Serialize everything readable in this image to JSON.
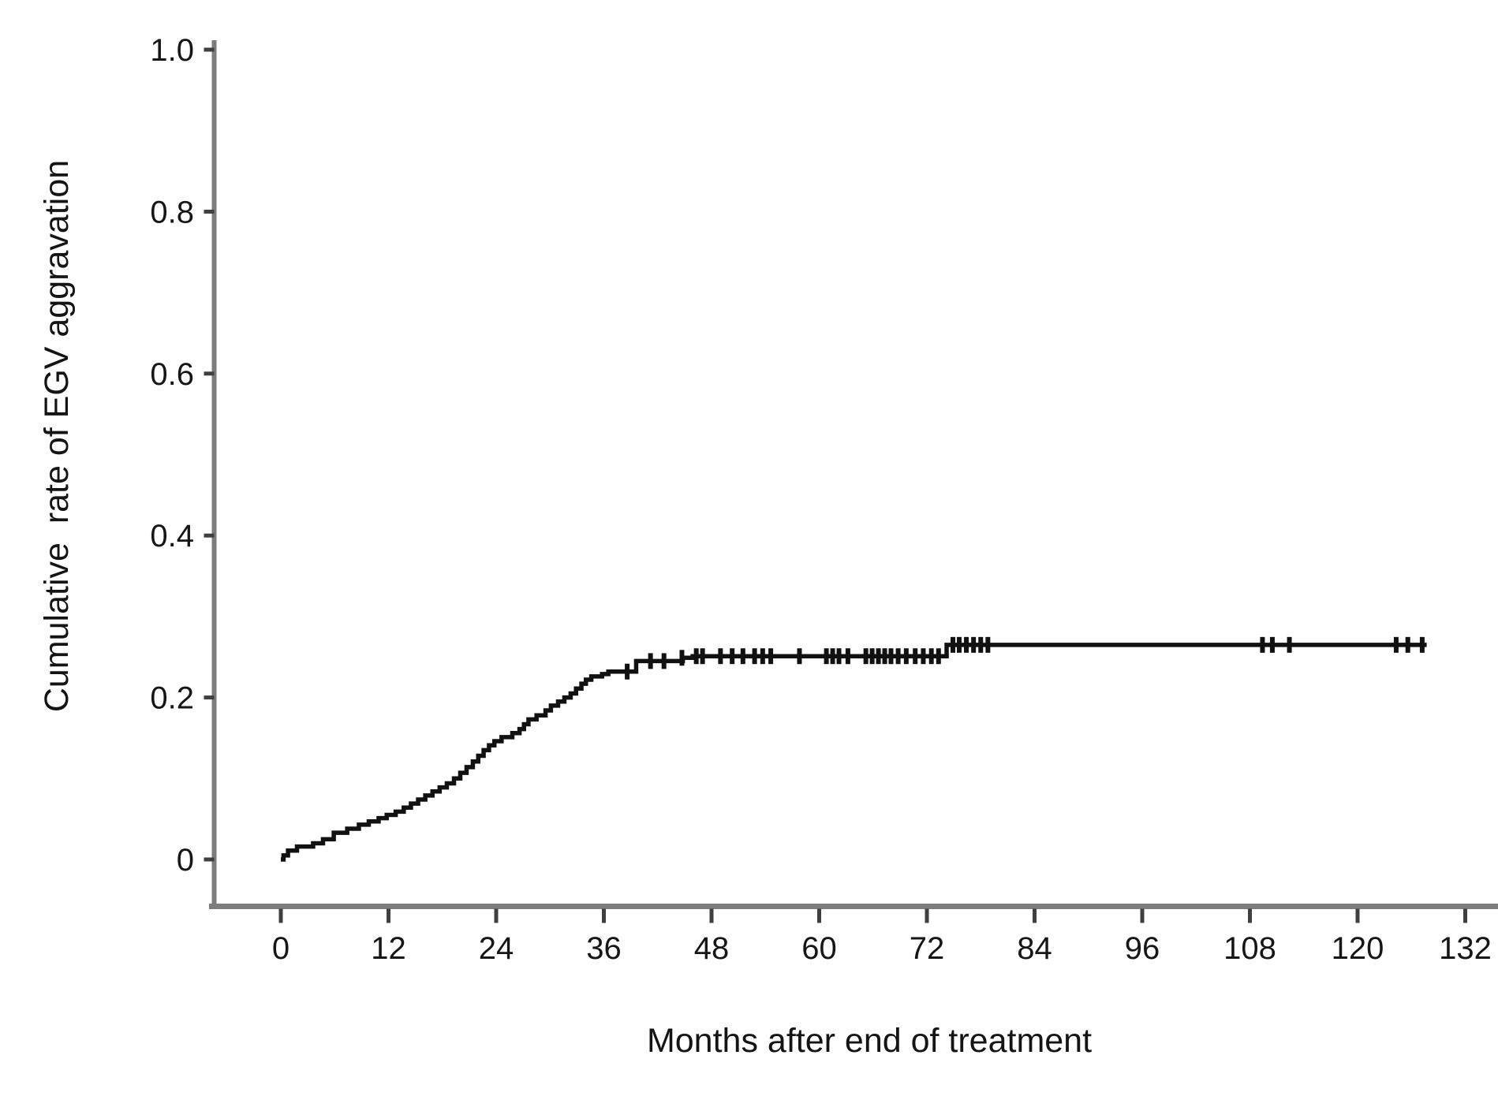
{
  "page": {
    "background": "#ffffff"
  },
  "chart_data": {
    "type": "line",
    "subtype": "kaplan-meier-cumulative-incidence-step-curve",
    "title": "",
    "xlabel": "Months after end of treatment",
    "ylabel": "Cumulative  rate of EGV aggravation",
    "x_ticks": [
      0,
      12,
      24,
      36,
      48,
      60,
      72,
      84,
      96,
      108,
      120,
      132
    ],
    "y_ticks": [
      0,
      0.2,
      0.4,
      0.6,
      0.8,
      1.0
    ],
    "y_tick_labels": [
      "0",
      "0.2",
      "0.4",
      "0.6",
      "0.8",
      "1.0"
    ],
    "xlim": [
      -8,
      138
    ],
    "ylim": [
      -0.06,
      1.01
    ],
    "grid": false,
    "legend": "none",
    "colors": {
      "curve": "#111111",
      "axis": "#7d7d7d",
      "tick": "#3f3f3f",
      "text": "#161616"
    },
    "series": [
      {
        "name": "Cumulative rate of EGV aggravation",
        "end_month": 127.7,
        "final_value": 0.265,
        "step_points": [
          [
            0,
            0
          ],
          [
            0.3,
            0.005
          ],
          [
            0.8,
            0.011
          ],
          [
            1.8,
            0.016
          ],
          [
            3.6,
            0.02
          ],
          [
            4.7,
            0.025
          ],
          [
            5.9,
            0.033
          ],
          [
            7.4,
            0.038
          ],
          [
            8.7,
            0.043
          ],
          [
            9.8,
            0.047
          ],
          [
            10.9,
            0.051
          ],
          [
            11.8,
            0.055
          ],
          [
            12.8,
            0.059
          ],
          [
            13.7,
            0.064
          ],
          [
            14.5,
            0.069
          ],
          [
            15.3,
            0.074
          ],
          [
            16.1,
            0.079
          ],
          [
            16.9,
            0.084
          ],
          [
            17.7,
            0.089
          ],
          [
            18.5,
            0.094
          ],
          [
            19.3,
            0.1
          ],
          [
            20,
            0.107
          ],
          [
            20.7,
            0.114
          ],
          [
            21.4,
            0.121
          ],
          [
            22,
            0.128
          ],
          [
            22.6,
            0.135
          ],
          [
            23.2,
            0.141
          ],
          [
            23.8,
            0.146
          ],
          [
            24.6,
            0.151
          ],
          [
            25.8,
            0.156
          ],
          [
            26.6,
            0.161
          ],
          [
            27.1,
            0.167
          ],
          [
            27.6,
            0.173
          ],
          [
            28.5,
            0.178
          ],
          [
            29.5,
            0.184
          ],
          [
            30.1,
            0.19
          ],
          [
            30.9,
            0.195
          ],
          [
            31.6,
            0.2
          ],
          [
            32.3,
            0.205
          ],
          [
            32.9,
            0.211
          ],
          [
            33.5,
            0.217
          ],
          [
            34,
            0.222
          ],
          [
            34.6,
            0.226
          ],
          [
            35.8,
            0.229
          ],
          [
            36.5,
            0.232
          ],
          [
            39.6,
            0.245
          ],
          [
            44.8,
            0.249
          ],
          [
            45.9,
            0.251
          ],
          [
            74.2,
            0.265
          ]
        ],
        "censor_marks": [
          [
            38.6,
            0.232
          ],
          [
            41.2,
            0.245
          ],
          [
            42.7,
            0.245
          ],
          [
            44.7,
            0.249
          ],
          [
            46.3,
            0.251
          ],
          [
            47,
            0.251
          ],
          [
            49,
            0.251
          ],
          [
            50.3,
            0.251
          ],
          [
            51.5,
            0.251
          ],
          [
            52.8,
            0.251
          ],
          [
            53.7,
            0.251
          ],
          [
            54.6,
            0.251
          ],
          [
            57.8,
            0.251
          ],
          [
            60.8,
            0.251
          ],
          [
            61.5,
            0.251
          ],
          [
            62.2,
            0.251
          ],
          [
            63.2,
            0.251
          ],
          [
            65.2,
            0.251
          ],
          [
            65.9,
            0.251
          ],
          [
            66.6,
            0.251
          ],
          [
            67.3,
            0.251
          ],
          [
            68,
            0.251
          ],
          [
            68.8,
            0.251
          ],
          [
            69.7,
            0.251
          ],
          [
            70.7,
            0.251
          ],
          [
            71.6,
            0.251
          ],
          [
            72.5,
            0.251
          ],
          [
            73.3,
            0.251
          ],
          [
            74.9,
            0.265
          ],
          [
            75.6,
            0.265
          ],
          [
            76.4,
            0.265
          ],
          [
            77.2,
            0.265
          ],
          [
            78,
            0.265
          ],
          [
            78.8,
            0.265
          ],
          [
            109.4,
            0.265
          ],
          [
            110.5,
            0.265
          ],
          [
            112.4,
            0.265
          ],
          [
            124.3,
            0.265
          ],
          [
            125.6,
            0.265
          ],
          [
            127.2,
            0.265
          ]
        ]
      }
    ]
  }
}
